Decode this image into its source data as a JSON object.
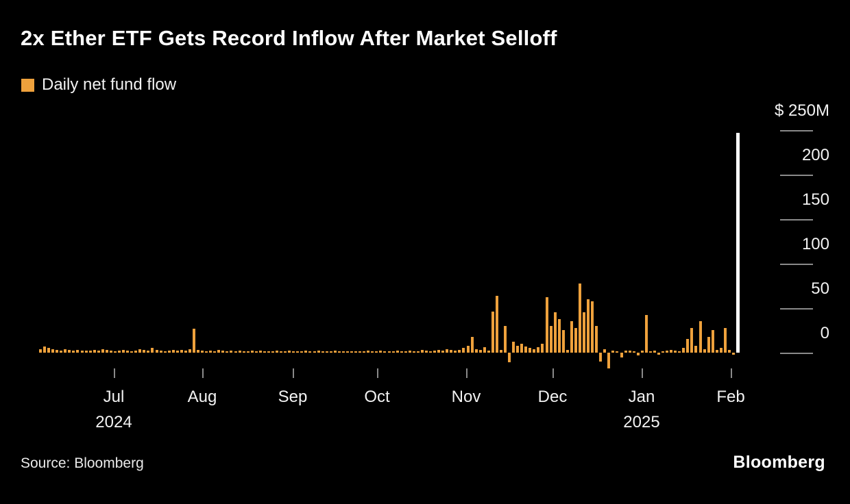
{
  "title": "2x Ether ETF Gets Record Inflow After Market Selloff",
  "legend": {
    "label": "Daily net fund flow",
    "color": "#EEA13C"
  },
  "source": "Source: Bloomberg",
  "brand": "Bloomberg",
  "chart_data": {
    "type": "bar",
    "title": "Daily net fund flow",
    "unit": "$M",
    "ylim": [
      -25,
      250
    ],
    "y_ticks": [
      "$ 250M",
      "200",
      "150",
      "100",
      "50",
      "0"
    ],
    "y_tick_values": [
      250,
      200,
      150,
      100,
      50,
      0
    ],
    "x_months": [
      "Jul",
      "Aug",
      "Sep",
      "Oct",
      "Nov",
      "Dec",
      "Jan",
      "Feb"
    ],
    "x_years": [
      {
        "label": "2024",
        "under_month": "Jul"
      },
      {
        "label": "2025",
        "under_month": "Jan"
      }
    ],
    "bar_color": "#EEA13C",
    "highlight_last_bar": true,
    "highlight_color": "#FFFFFF",
    "legend_position": "top-left",
    "grid": false,
    "values": [
      4,
      7,
      5,
      4,
      3,
      2,
      4,
      3,
      2,
      3,
      2,
      2,
      2,
      3,
      2,
      4,
      3,
      2,
      1,
      2,
      3,
      2,
      1,
      2,
      4,
      3,
      2,
      5,
      3,
      2,
      1,
      2,
      3,
      2,
      3,
      2,
      4,
      27,
      3,
      2,
      1,
      2,
      1,
      3,
      2,
      1,
      2,
      1,
      2,
      1,
      1,
      2,
      1,
      2,
      1,
      1,
      1,
      2,
      1,
      1,
      2,
      1,
      1,
      1,
      2,
      1,
      1,
      2,
      1,
      1,
      1,
      2,
      1,
      1,
      1,
      1,
      1,
      1,
      1,
      2,
      1,
      1,
      2,
      1,
      1,
      1,
      2,
      1,
      1,
      2,
      1,
      1,
      3,
      2,
      1,
      2,
      3,
      2,
      4,
      3,
      2,
      3,
      5,
      8,
      18,
      4,
      3,
      6,
      2,
      46,
      64,
      3,
      30,
      -11,
      12,
      8,
      10,
      7,
      5,
      4,
      6,
      10,
      62,
      30,
      45,
      38,
      25,
      3,
      35,
      28,
      78,
      45,
      60,
      58,
      30,
      -10,
      4,
      -18,
      2,
      1,
      -5,
      2,
      2,
      1,
      -3,
      2,
      42,
      1,
      2,
      -2,
      1,
      2,
      3,
      2,
      1,
      5,
      15,
      28,
      8,
      35,
      4,
      18,
      25,
      3,
      5,
      28,
      3,
      -2,
      247
    ]
  }
}
